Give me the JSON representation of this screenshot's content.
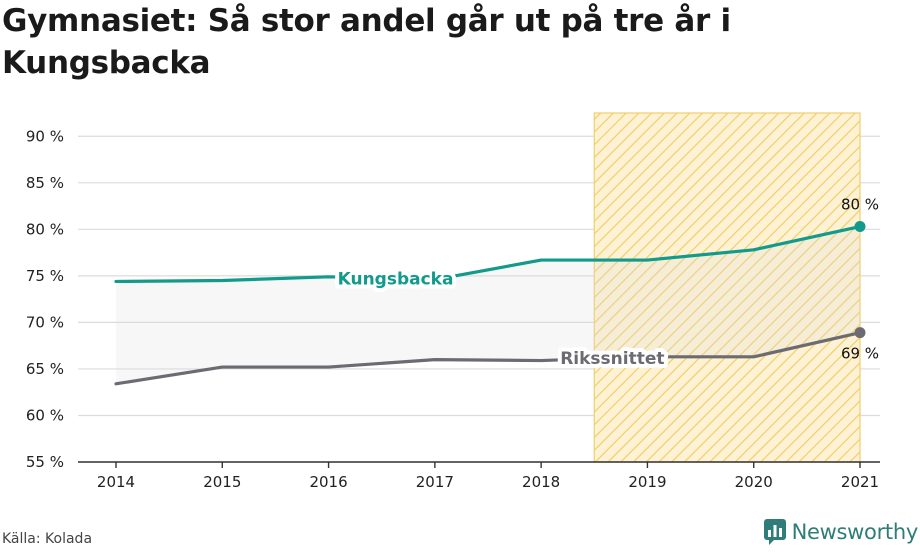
{
  "title": "Gymnasiet: Så stor andel går ut på tre år i Kungsbacka",
  "source": "Källa: Kolada",
  "brand": {
    "name": "Newsworthy",
    "icon": "newsworthy-logo-icon",
    "color": "#2e7d78"
  },
  "chart_data": {
    "type": "line",
    "x": [
      "2014",
      "2015",
      "2016",
      "2017",
      "2018",
      "2019",
      "2020",
      "2021"
    ],
    "ylim": [
      55,
      92.5
    ],
    "yticks": [
      55,
      60,
      65,
      70,
      75,
      80,
      85,
      90
    ],
    "ytick_labels": [
      "55 %",
      "60 %",
      "65 %",
      "70 %",
      "75 %",
      "80 %",
      "85 %",
      "90 %"
    ],
    "grid": true,
    "highlight_range": {
      "from": "2019",
      "to": "2021",
      "color": "#f2c94c"
    },
    "series": [
      {
        "name": "Kungsbacka",
        "color": "#129a8c",
        "values": [
          74.4,
          74.5,
          74.9,
          74.6,
          76.7,
          76.7,
          77.8,
          80.3
        ],
        "end_label": "80 %"
      },
      {
        "name": "Rikssnittet",
        "color": "#6d6b72",
        "values": [
          63.4,
          65.2,
          65.2,
          66.0,
          65.9,
          66.3,
          66.3,
          68.9
        ],
        "end_label": "69 %"
      }
    ]
  }
}
